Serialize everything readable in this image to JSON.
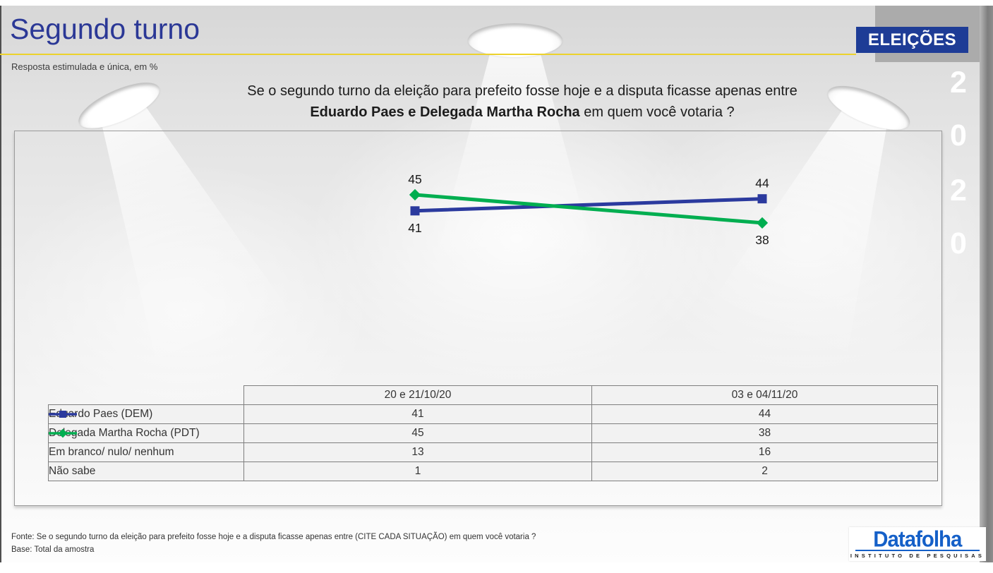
{
  "header": {
    "title": "Segundo turno",
    "subtitle": "Resposta estimulada e única, em %",
    "badge": "ELEIÇÕES",
    "year_digits": [
      "2",
      "0",
      "2",
      "0"
    ]
  },
  "question": {
    "line1": "Se o segundo turno da eleição para prefeito fosse hoje e a disputa ficasse apenas entre",
    "line2_bold": "Eduardo Paes e Delegada Martha Rocha",
    "line2_rest": " em quem você votaria ?"
  },
  "chart_data": {
    "type": "line",
    "categories": [
      "20 e 21/10/20",
      "03 e 04/11/20"
    ],
    "series": [
      {
        "name": "Eduardo Paes (DEM)",
        "values": [
          41,
          44
        ],
        "color": "#2b3a9e",
        "marker": "square"
      },
      {
        "name": "Delegada Martha Rocha (PDT)",
        "values": [
          45,
          38
        ],
        "color": "#00ae50",
        "marker": "diamond"
      }
    ],
    "data_labels": true,
    "axes_hidden": true,
    "ylim": [
      30,
      50
    ]
  },
  "table": {
    "col_headers": [
      "20 e 21/10/20",
      "03 e 04/11/20"
    ],
    "rows": [
      {
        "label": "Eduardo Paes (DEM)",
        "values": [
          "41",
          "44"
        ],
        "marker": "square",
        "color": "#2b3a9e"
      },
      {
        "label": "Delegada Martha Rocha (PDT)",
        "values": [
          "45",
          "38"
        ],
        "marker": "diamond",
        "color": "#00ae50"
      },
      {
        "label": "Em branco/ nulo/ nenhum",
        "values": [
          "13",
          "16"
        ]
      },
      {
        "label": "Não sabe",
        "values": [
          "1",
          "2"
        ]
      }
    ]
  },
  "footer": {
    "fonte": "Fonte: Se o segundo turno da eleição para prefeito fosse hoje e a disputa ficasse apenas entre (CITE CADA SITUAÇÃO) em quem você votaria ?",
    "base": "Base: Total da amostra"
  },
  "logo": {
    "name": "Datafolha",
    "tagline": "INSTITUTO DE PESQUISAS"
  },
  "colors": {
    "title_blue": "#2b3896",
    "badge_blue": "#1e3c96",
    "yellow_line": "#ecd22c",
    "paes_blue": "#2b3a9e",
    "martha_green": "#00ae50",
    "logo_blue": "#1560c8"
  }
}
